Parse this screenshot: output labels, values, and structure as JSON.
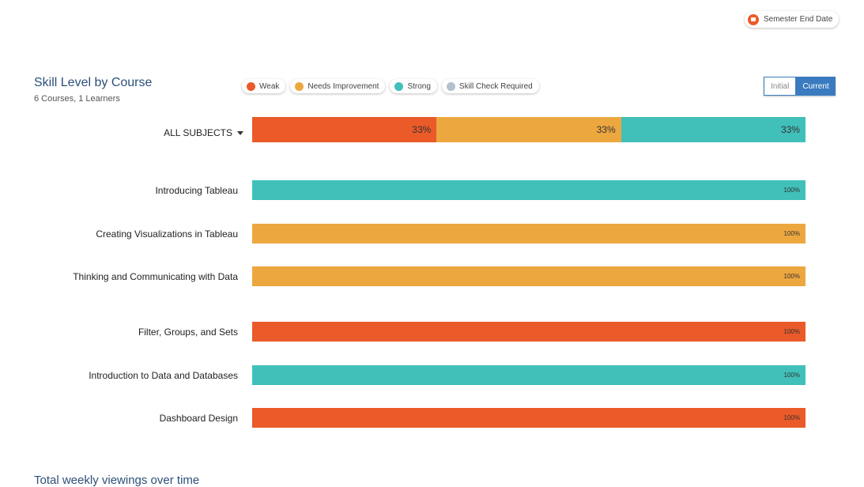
{
  "header": {
    "semester_button": "Semester End Date",
    "semester_icon": "flag-icon"
  },
  "section": {
    "title": "Skill Level by Course",
    "subtitle": "6 Courses, 1 Learners",
    "toggle": {
      "initial": "Initial",
      "current": "Current",
      "selected": "Current"
    }
  },
  "legend": [
    {
      "label": "Weak",
      "color": "#eb5a29"
    },
    {
      "label": "Needs Improvement",
      "color": "#eda73f"
    },
    {
      "label": "Strong",
      "color": "#40c0b9"
    },
    {
      "label": "Skill Check Required",
      "color": "#b4bfd0"
    }
  ],
  "chart_data": {
    "type": "bar",
    "orientation": "horizontal-stacked",
    "title": "Skill Level by Course",
    "series_names": [
      "Weak",
      "Needs Improvement",
      "Strong",
      "Skill Check Required"
    ],
    "summary": {
      "label": "ALL SUBJECTS",
      "segments": [
        {
          "name": "Weak",
          "value": 33,
          "label": "33%"
        },
        {
          "name": "Needs Improvement",
          "value": 33,
          "label": "33%"
        },
        {
          "name": "Strong",
          "value": 33,
          "label": "33%"
        }
      ]
    },
    "categories": [
      "Introducing Tableau",
      "Creating Visualizations in Tableau",
      "Thinking and Communicating with Data",
      "Filter, Groups, and Sets",
      "Introduction to Data and Databases",
      "Dashboard Design"
    ],
    "rows": [
      {
        "course": "Introducing Tableau",
        "level": "Strong",
        "value": 100,
        "label": "100%"
      },
      {
        "course": "Creating Visualizations in Tableau",
        "level": "Needs Improvement",
        "value": 100,
        "label": "100%"
      },
      {
        "course": "Thinking and Communicating with Data",
        "level": "Needs Improvement",
        "value": 100,
        "label": "100%"
      },
      {
        "course": "Filter, Groups, and Sets",
        "level": "Weak",
        "value": 100,
        "label": "100%"
      },
      {
        "course": "Introduction to Data and Databases",
        "level": "Strong",
        "value": 100,
        "label": "100%"
      },
      {
        "course": "Dashboard Design",
        "level": "Weak",
        "value": 100,
        "label": "100%"
      }
    ],
    "xlim": [
      0,
      100
    ]
  },
  "footer": {
    "next_section_title": "Total weekly viewings over time"
  }
}
